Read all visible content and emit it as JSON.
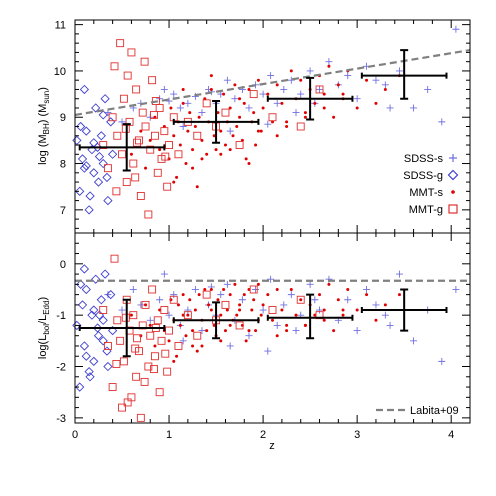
{
  "chart_data": [
    {
      "type": "scatter",
      "panel": "top",
      "ylabel": "log (M_BH)  (M_sun)",
      "xlim": [
        0,
        4.2
      ],
      "ylim": [
        6.5,
        11.1
      ],
      "yticks": [
        "7",
        "8",
        "9",
        "10",
        "11"
      ],
      "legend": {
        "placement": "right",
        "entries": [
          "SDSS-s",
          "SDSS-g",
          "MMT-s",
          "MMT-g"
        ]
      },
      "relation_line": {
        "name": "Labita+09",
        "x": [
          0,
          4.2
        ],
        "y": [
          9.05,
          10.45
        ]
      },
      "binned_errorbars": [
        {
          "x": 0.55,
          "xlo": 0.05,
          "xhi": 0.95,
          "y": 8.35,
          "ylo": 7.85,
          "yhi": 8.85
        },
        {
          "x": 1.5,
          "xlo": 1.05,
          "xhi": 1.95,
          "y": 8.9,
          "ylo": 8.45,
          "yhi": 9.35
        },
        {
          "x": 2.5,
          "xlo": 2.05,
          "xhi": 2.95,
          "y": 9.4,
          "ylo": 8.95,
          "yhi": 9.85
        },
        {
          "x": 3.5,
          "xlo": 3.05,
          "xhi": 3.95,
          "y": 9.9,
          "ylo": 9.4,
          "yhi": 10.45
        }
      ],
      "series": [
        {
          "name": "SDSS-s",
          "marker": "plus",
          "color": "#6f6fe0",
          "x": [
            0.35,
            0.5,
            0.62,
            0.7,
            0.8,
            0.9,
            1.0,
            1.05,
            1.12,
            1.2,
            1.28,
            1.35,
            1.42,
            1.5,
            1.55,
            1.62,
            1.7,
            1.78,
            1.85,
            1.92,
            2.0,
            2.08,
            2.15,
            2.22,
            2.3,
            2.4,
            2.5,
            2.6,
            2.7,
            2.8,
            2.9,
            3.0,
            3.1,
            3.2,
            3.3,
            3.45,
            3.6,
            3.75,
            3.9,
            4.05,
            2.35,
            1.65,
            1.15,
            0.95,
            2.55,
            3.35,
            2.05,
            1.45
          ],
          "y": [
            9.1,
            8.9,
            9.2,
            9.3,
            9.0,
            9.4,
            9.35,
            9.5,
            9.2,
            9.3,
            9.45,
            9.1,
            9.6,
            9.3,
            9.5,
            9.8,
            9.4,
            9.6,
            9.2,
            9.7,
            9.5,
            9.9,
            9.3,
            9.6,
            9.8,
            9.5,
            10.0,
            9.6,
            10.2,
            9.7,
            9.9,
            9.4,
            10.1,
            9.8,
            9.7,
            10.0,
            9.2,
            9.6,
            8.9,
            10.9,
            9.1,
            8.7,
            8.8,
            9.6,
            9.3,
            9.2,
            8.85,
            9.55
          ]
        },
        {
          "name": "SDSS-g",
          "marker": "diamond",
          "color": "#4040d0",
          "x": [
            0.02,
            0.05,
            0.08,
            0.1,
            0.12,
            0.15,
            0.18,
            0.2,
            0.22,
            0.25,
            0.28,
            0.3,
            0.32,
            0.35,
            0.38,
            0.4,
            0.12,
            0.2,
            0.3,
            0.06,
            0.16,
            0.26,
            0.34,
            0.1,
            0.24
          ],
          "y": [
            8.5,
            7.4,
            8.1,
            7.9,
            8.7,
            7.0,
            8.3,
            7.8,
            9.2,
            7.6,
            8.6,
            8.0,
            9.4,
            7.2,
            8.9,
            8.2,
            7.95,
            8.45,
            9.05,
            8.8,
            7.3,
            8.15,
            7.7,
            9.6,
            8.35
          ]
        },
        {
          "name": "MMT-s",
          "marker": "dot",
          "color": "#e00000",
          "x": [
            0.6,
            0.7,
            0.75,
            0.8,
            0.85,
            0.9,
            0.95,
            1.0,
            1.02,
            1.05,
            1.08,
            1.1,
            1.12,
            1.15,
            1.18,
            1.2,
            1.22,
            1.25,
            1.28,
            1.3,
            1.32,
            1.35,
            1.38,
            1.4,
            1.42,
            1.45,
            1.48,
            1.5,
            1.52,
            1.55,
            1.58,
            1.6,
            1.62,
            1.65,
            1.68,
            1.7,
            1.72,
            1.75,
            1.78,
            1.8,
            1.82,
            1.85,
            1.88,
            1.9,
            1.92,
            1.95,
            1.98,
            2.0,
            2.05,
            2.1,
            2.15,
            2.2,
            2.25,
            2.3,
            2.35,
            2.4,
            2.45,
            2.5,
            2.55,
            2.6,
            2.65,
            2.7,
            2.75,
            2.8,
            2.85,
            2.9,
            3.0,
            3.1,
            3.2,
            3.3,
            3.45,
            1.25,
            1.55,
            1.85,
            2.15,
            1.05,
            1.35,
            1.65,
            1.95,
            2.25,
            2.45,
            2.65,
            2.85,
            1.15,
            1.45,
            1.75
          ],
          "y": [
            8.2,
            8.7,
            7.9,
            8.5,
            9.0,
            8.3,
            8.8,
            8.1,
            9.2,
            8.6,
            7.7,
            8.9,
            8.4,
            9.3,
            8.0,
            8.7,
            9.1,
            8.3,
            8.8,
            7.5,
            9.0,
            8.5,
            9.4,
            8.2,
            8.9,
            9.6,
            8.6,
            8.3,
            9.1,
            8.7,
            9.5,
            8.4,
            8.9,
            9.2,
            8.6,
            9.7,
            8.8,
            9.0,
            8.5,
            9.3,
            8.1,
            9.6,
            8.9,
            9.1,
            8.4,
            9.8,
            8.7,
            9.2,
            9.5,
            8.9,
            9.7,
            9.3,
            8.8,
            10.0,
            9.4,
            9.8,
            9.1,
            9.6,
            9.3,
            9.9,
            9.5,
            10.1,
            9.0,
            9.7,
            9.4,
            10.0,
            9.2,
            9.8,
            9.3,
            9.6,
            9.9,
            7.9,
            8.2,
            8.0,
            8.6,
            7.6,
            8.1,
            8.3,
            8.7,
            8.9,
            9.0,
            9.2,
            9.5,
            9.6,
            9.9,
            9.4
          ]
        },
        {
          "name": "MMT-g",
          "marker": "square",
          "color": "#e03030",
          "x": [
            0.3,
            0.35,
            0.4,
            0.45,
            0.48,
            0.5,
            0.52,
            0.55,
            0.58,
            0.6,
            0.62,
            0.65,
            0.68,
            0.7,
            0.72,
            0.75,
            0.78,
            0.8,
            0.82,
            0.85,
            0.88,
            0.9,
            0.92,
            0.95,
            0.98,
            1.0,
            1.05,
            1.1,
            1.2,
            1.3,
            1.4,
            1.5,
            1.6,
            1.75,
            1.9,
            2.1,
            2.4,
            2.6,
            0.42,
            0.56,
            0.66,
            0.74,
            0.86,
            0.44,
            0.64,
            0.84,
            0.54,
            0.96
          ],
          "y": [
            8.4,
            7.9,
            9.0,
            8.6,
            10.6,
            8.2,
            9.4,
            7.6,
            8.9,
            10.4,
            8.0,
            9.6,
            8.5,
            7.3,
            9.1,
            8.8,
            6.9,
            8.3,
            9.8,
            8.6,
            7.8,
            9.2,
            8.1,
            8.7,
            7.5,
            8.4,
            9.0,
            8.2,
            8.9,
            8.6,
            9.3,
            8.8,
            9.1,
            8.4,
            9.5,
            9.0,
            8.8,
            9.6,
            10.1,
            9.9,
            8.45,
            10.2,
            9.35,
            7.4,
            7.7,
            9.05,
            8.75,
            8.15
          ]
        }
      ]
    },
    {
      "type": "scatter",
      "panel": "bottom",
      "xlabel": "z",
      "ylabel": "log(L_bol/L_Edd)",
      "xlim": [
        0,
        4.2
      ],
      "ylim": [
        -3.1,
        0.6
      ],
      "xticks": [
        "0",
        "1",
        "2",
        "3",
        "4"
      ],
      "yticks": [
        "-3",
        "-2",
        "-1",
        "0"
      ],
      "legend": {
        "placement": "bottom-right",
        "entries": [
          "Labita+09"
        ]
      },
      "relation_line": {
        "name": "Labita+09",
        "x": [
          0,
          4.2
        ],
        "y": [
          -0.33,
          -0.33
        ]
      },
      "binned_errorbars": [
        {
          "x": 0.55,
          "xlo": 0.05,
          "xhi": 0.95,
          "y": -1.25,
          "ylo": -1.8,
          "yhi": -0.7
        },
        {
          "x": 1.5,
          "xlo": 1.05,
          "xhi": 1.95,
          "y": -1.1,
          "ylo": -1.45,
          "yhi": -0.75
        },
        {
          "x": 2.5,
          "xlo": 2.05,
          "xhi": 2.95,
          "y": -1.05,
          "ylo": -1.45,
          "yhi": -0.6
        },
        {
          "x": 3.5,
          "xlo": 3.05,
          "xhi": 3.95,
          "y": -0.9,
          "ylo": -1.3,
          "yhi": -0.5
        }
      ],
      "series": [
        {
          "name": "SDSS-s",
          "marker": "plus",
          "color": "#6f6fe0",
          "x": [
            0.35,
            0.5,
            0.62,
            0.7,
            0.8,
            0.9,
            1.0,
            1.05,
            1.12,
            1.2,
            1.28,
            1.35,
            1.42,
            1.5,
            1.55,
            1.62,
            1.7,
            1.78,
            1.85,
            1.92,
            2.0,
            2.08,
            2.15,
            2.22,
            2.3,
            2.4,
            2.5,
            2.6,
            2.7,
            2.8,
            2.9,
            3.0,
            3.1,
            3.2,
            3.3,
            3.45,
            3.6,
            3.75,
            3.9,
            4.05,
            2.35,
            1.65,
            1.15,
            0.95,
            2.55,
            3.35,
            2.05,
            1.45
          ],
          "y": [
            -0.6,
            -0.9,
            -0.5,
            -0.8,
            -1.1,
            -0.7,
            -1.0,
            -0.6,
            -1.2,
            -0.9,
            -0.5,
            -1.3,
            -0.8,
            -1.0,
            -0.6,
            -0.4,
            -1.1,
            -0.7,
            -1.4,
            -0.5,
            -0.9,
            -0.3,
            -1.2,
            -0.8,
            -0.6,
            -1.0,
            -0.4,
            -0.9,
            -0.3,
            -1.1,
            -0.7,
            -1.3,
            -0.5,
            -0.8,
            -1.0,
            -0.2,
            -1.5,
            -0.9,
            -1.9,
            -0.5,
            -1.3,
            -1.6,
            -1.5,
            -0.2,
            -0.7,
            -1.2,
            -1.7,
            -0.45
          ]
        },
        {
          "name": "SDSS-g",
          "marker": "diamond",
          "color": "#4040d0",
          "x": [
            0.02,
            0.05,
            0.08,
            0.1,
            0.12,
            0.15,
            0.18,
            0.2,
            0.22,
            0.25,
            0.28,
            0.3,
            0.32,
            0.35,
            0.38,
            0.4,
            0.12,
            0.2,
            0.3,
            0.06,
            0.16,
            0.26,
            0.34,
            0.1,
            0.24
          ],
          "y": [
            -1.2,
            -2.4,
            -0.8,
            -1.6,
            -0.5,
            -2.1,
            -1.0,
            -1.9,
            -0.3,
            -1.4,
            -0.7,
            -1.1,
            -0.2,
            -2.0,
            -0.6,
            -1.3,
            -1.8,
            -0.9,
            -1.5,
            -0.4,
            -2.2,
            -1.0,
            -1.7,
            -0.1,
            -1.25
          ]
        },
        {
          "name": "MMT-s",
          "marker": "dot",
          "color": "#e00000",
          "x": [
            0.6,
            0.7,
            0.75,
            0.8,
            0.85,
            0.9,
            0.95,
            1.0,
            1.02,
            1.05,
            1.08,
            1.1,
            1.12,
            1.15,
            1.18,
            1.2,
            1.22,
            1.25,
            1.28,
            1.3,
            1.32,
            1.35,
            1.38,
            1.4,
            1.42,
            1.45,
            1.48,
            1.5,
            1.52,
            1.55,
            1.58,
            1.6,
            1.62,
            1.65,
            1.68,
            1.7,
            1.72,
            1.75,
            1.78,
            1.8,
            1.82,
            1.85,
            1.88,
            1.9,
            1.92,
            1.95,
            1.98,
            2.0,
            2.05,
            2.1,
            2.15,
            2.2,
            2.25,
            2.3,
            2.35,
            2.4,
            2.45,
            2.5,
            2.55,
            2.6,
            2.65,
            2.7,
            2.75,
            2.8,
            2.85,
            2.9,
            3.0,
            3.1,
            3.2,
            3.3,
            3.45,
            1.25,
            1.55,
            1.85,
            2.15,
            1.05,
            1.35,
            1.65,
            1.95,
            2.25,
            2.45,
            2.65,
            2.85,
            1.15,
            1.45,
            1.75
          ],
          "y": [
            -1.0,
            -1.4,
            -0.8,
            -1.2,
            -1.6,
            -0.9,
            -1.3,
            -1.5,
            -0.7,
            -1.1,
            -1.8,
            -0.8,
            -1.2,
            -0.6,
            -1.4,
            -1.0,
            -0.7,
            -1.3,
            -0.9,
            -1.7,
            -0.6,
            -1.1,
            -0.5,
            -1.3,
            -0.8,
            -0.5,
            -1.2,
            -1.4,
            -0.7,
            -1.0,
            -0.5,
            -1.3,
            -0.9,
            -0.6,
            -1.1,
            -0.4,
            -1.0,
            -0.8,
            -1.2,
            -0.6,
            -1.5,
            -0.5,
            -0.9,
            -0.7,
            -1.3,
            -0.4,
            -1.0,
            -0.8,
            -0.6,
            -1.1,
            -0.5,
            -0.9,
            -1.2,
            -0.5,
            -1.0,
            -0.7,
            -1.2,
            -0.8,
            -1.0,
            -0.6,
            -0.9,
            -0.4,
            -1.3,
            -0.7,
            -1.0,
            -0.5,
            -0.9,
            -0.6,
            -1.1,
            -0.8,
            -0.6,
            -1.6,
            -1.5,
            -1.3,
            -1.4,
            -1.9,
            -1.6,
            -1.2,
            -1.1,
            -1.3,
            -1.2,
            -1.1,
            -0.9,
            -1.0,
            -0.9,
            -0.9
          ]
        },
        {
          "name": "MMT-g",
          "marker": "square",
          "color": "#e03030",
          "x": [
            0.3,
            0.35,
            0.4,
            0.45,
            0.48,
            0.5,
            0.52,
            0.55,
            0.58,
            0.6,
            0.62,
            0.65,
            0.68,
            0.7,
            0.72,
            0.75,
            0.78,
            0.8,
            0.82,
            0.85,
            0.88,
            0.9,
            0.92,
            0.95,
            0.98,
            1.0,
            1.05,
            1.1,
            1.2,
            1.3,
            1.4,
            1.5,
            1.6,
            1.75,
            1.9,
            2.1,
            2.4,
            2.6,
            0.42,
            0.56,
            0.66,
            0.74,
            0.86,
            0.44,
            0.64,
            0.84,
            0.54,
            0.96
          ],
          "y": [
            -0.9,
            -1.6,
            -2.4,
            -1.1,
            -1.5,
            -2.8,
            -1.9,
            -0.7,
            -1.3,
            -2.6,
            -1.0,
            -2.2,
            -1.7,
            -3.0,
            -1.2,
            -0.8,
            -2.0,
            -1.4,
            -0.5,
            -1.8,
            -1.1,
            -2.5,
            -1.5,
            -0.9,
            -2.1,
            -1.3,
            -0.7,
            -1.6,
            -1.0,
            -1.4,
            -0.6,
            -1.1,
            -0.8,
            -1.2,
            -0.5,
            -0.9,
            -0.7,
            -1.0,
            0.1,
            -2.7,
            -1.45,
            -2.3,
            -1.25,
            -1.95,
            -1.65,
            -2.05,
            -1.05,
            -1.75
          ]
        }
      ]
    }
  ]
}
